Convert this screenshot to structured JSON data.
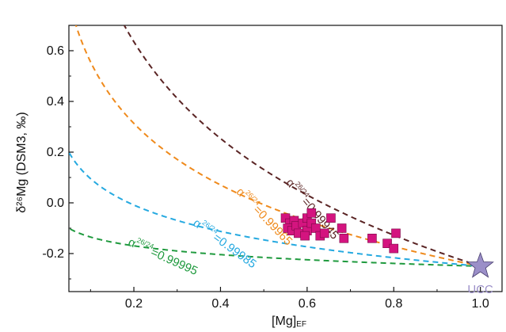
{
  "chart_data": {
    "type": "scatter",
    "xlabel": "[Mg]",
    "xlabel_sub": "EF",
    "ylabel": "δ²⁶Mg (DSM3, ‰)",
    "xlim": [
      0.05,
      1.05
    ],
    "ylim": [
      -0.35,
      0.7
    ],
    "x_ticks": [
      0.2,
      0.4,
      0.6,
      0.8,
      1.0
    ],
    "x_tick_labels": [
      "0.2",
      "0.4",
      "0.6",
      "0.8",
      "1.0"
    ],
    "y_ticks": [
      -0.2,
      0.0,
      0.2,
      0.4,
      0.6
    ],
    "y_tick_labels": [
      "-0.2",
      "0.0",
      "0.2",
      "0.4",
      "0.6"
    ],
    "grid": false,
    "curves": [
      {
        "alpha_symbol": "α",
        "alpha_sup": "26/24",
        "value_text": "=0.99995",
        "alpha": 0.99995,
        "color": "#1f9a3e"
      },
      {
        "alpha_symbol": "α",
        "alpha_sup": "26/24",
        "value_text": "=0.99985",
        "alpha": 0.99985,
        "color": "#25a9e0"
      },
      {
        "alpha_symbol": "α",
        "alpha_sup": "26/24",
        "value_text": "=0.99965",
        "alpha": 0.99965,
        "color": "#ef8a1c"
      },
      {
        "alpha_symbol": "α",
        "alpha_sup": "26/24",
        "value_text": "=0.99945",
        "alpha": 0.99945,
        "color": "#5a2424"
      }
    ],
    "endmember": {
      "name": "UCC",
      "x": 1.0,
      "y": -0.25,
      "color": "#9b8fc8"
    },
    "points_color": "#d4147f",
    "points": [
      {
        "x": 0.55,
        "y": -0.06
      },
      {
        "x": 0.56,
        "y": -0.08
      },
      {
        "x": 0.57,
        "y": -0.07
      },
      {
        "x": 0.555,
        "y": -0.1
      },
      {
        "x": 0.565,
        "y": -0.11
      },
      {
        "x": 0.575,
        "y": -0.09
      },
      {
        "x": 0.58,
        "y": -0.12
      },
      {
        "x": 0.59,
        "y": -0.08
      },
      {
        "x": 0.6,
        "y": -0.06
      },
      {
        "x": 0.6,
        "y": -0.11
      },
      {
        "x": 0.61,
        "y": -0.04
      },
      {
        "x": 0.61,
        "y": -0.08
      },
      {
        "x": 0.62,
        "y": -0.1
      },
      {
        "x": 0.63,
        "y": -0.13
      },
      {
        "x": 0.64,
        "y": -0.12
      },
      {
        "x": 0.595,
        "y": -0.13
      },
      {
        "x": 0.655,
        "y": -0.06
      },
      {
        "x": 0.68,
        "y": -0.1
      },
      {
        "x": 0.685,
        "y": -0.14
      },
      {
        "x": 0.75,
        "y": -0.14
      },
      {
        "x": 0.785,
        "y": -0.16
      },
      {
        "x": 0.8,
        "y": -0.18
      },
      {
        "x": 0.805,
        "y": -0.12
      }
    ]
  }
}
